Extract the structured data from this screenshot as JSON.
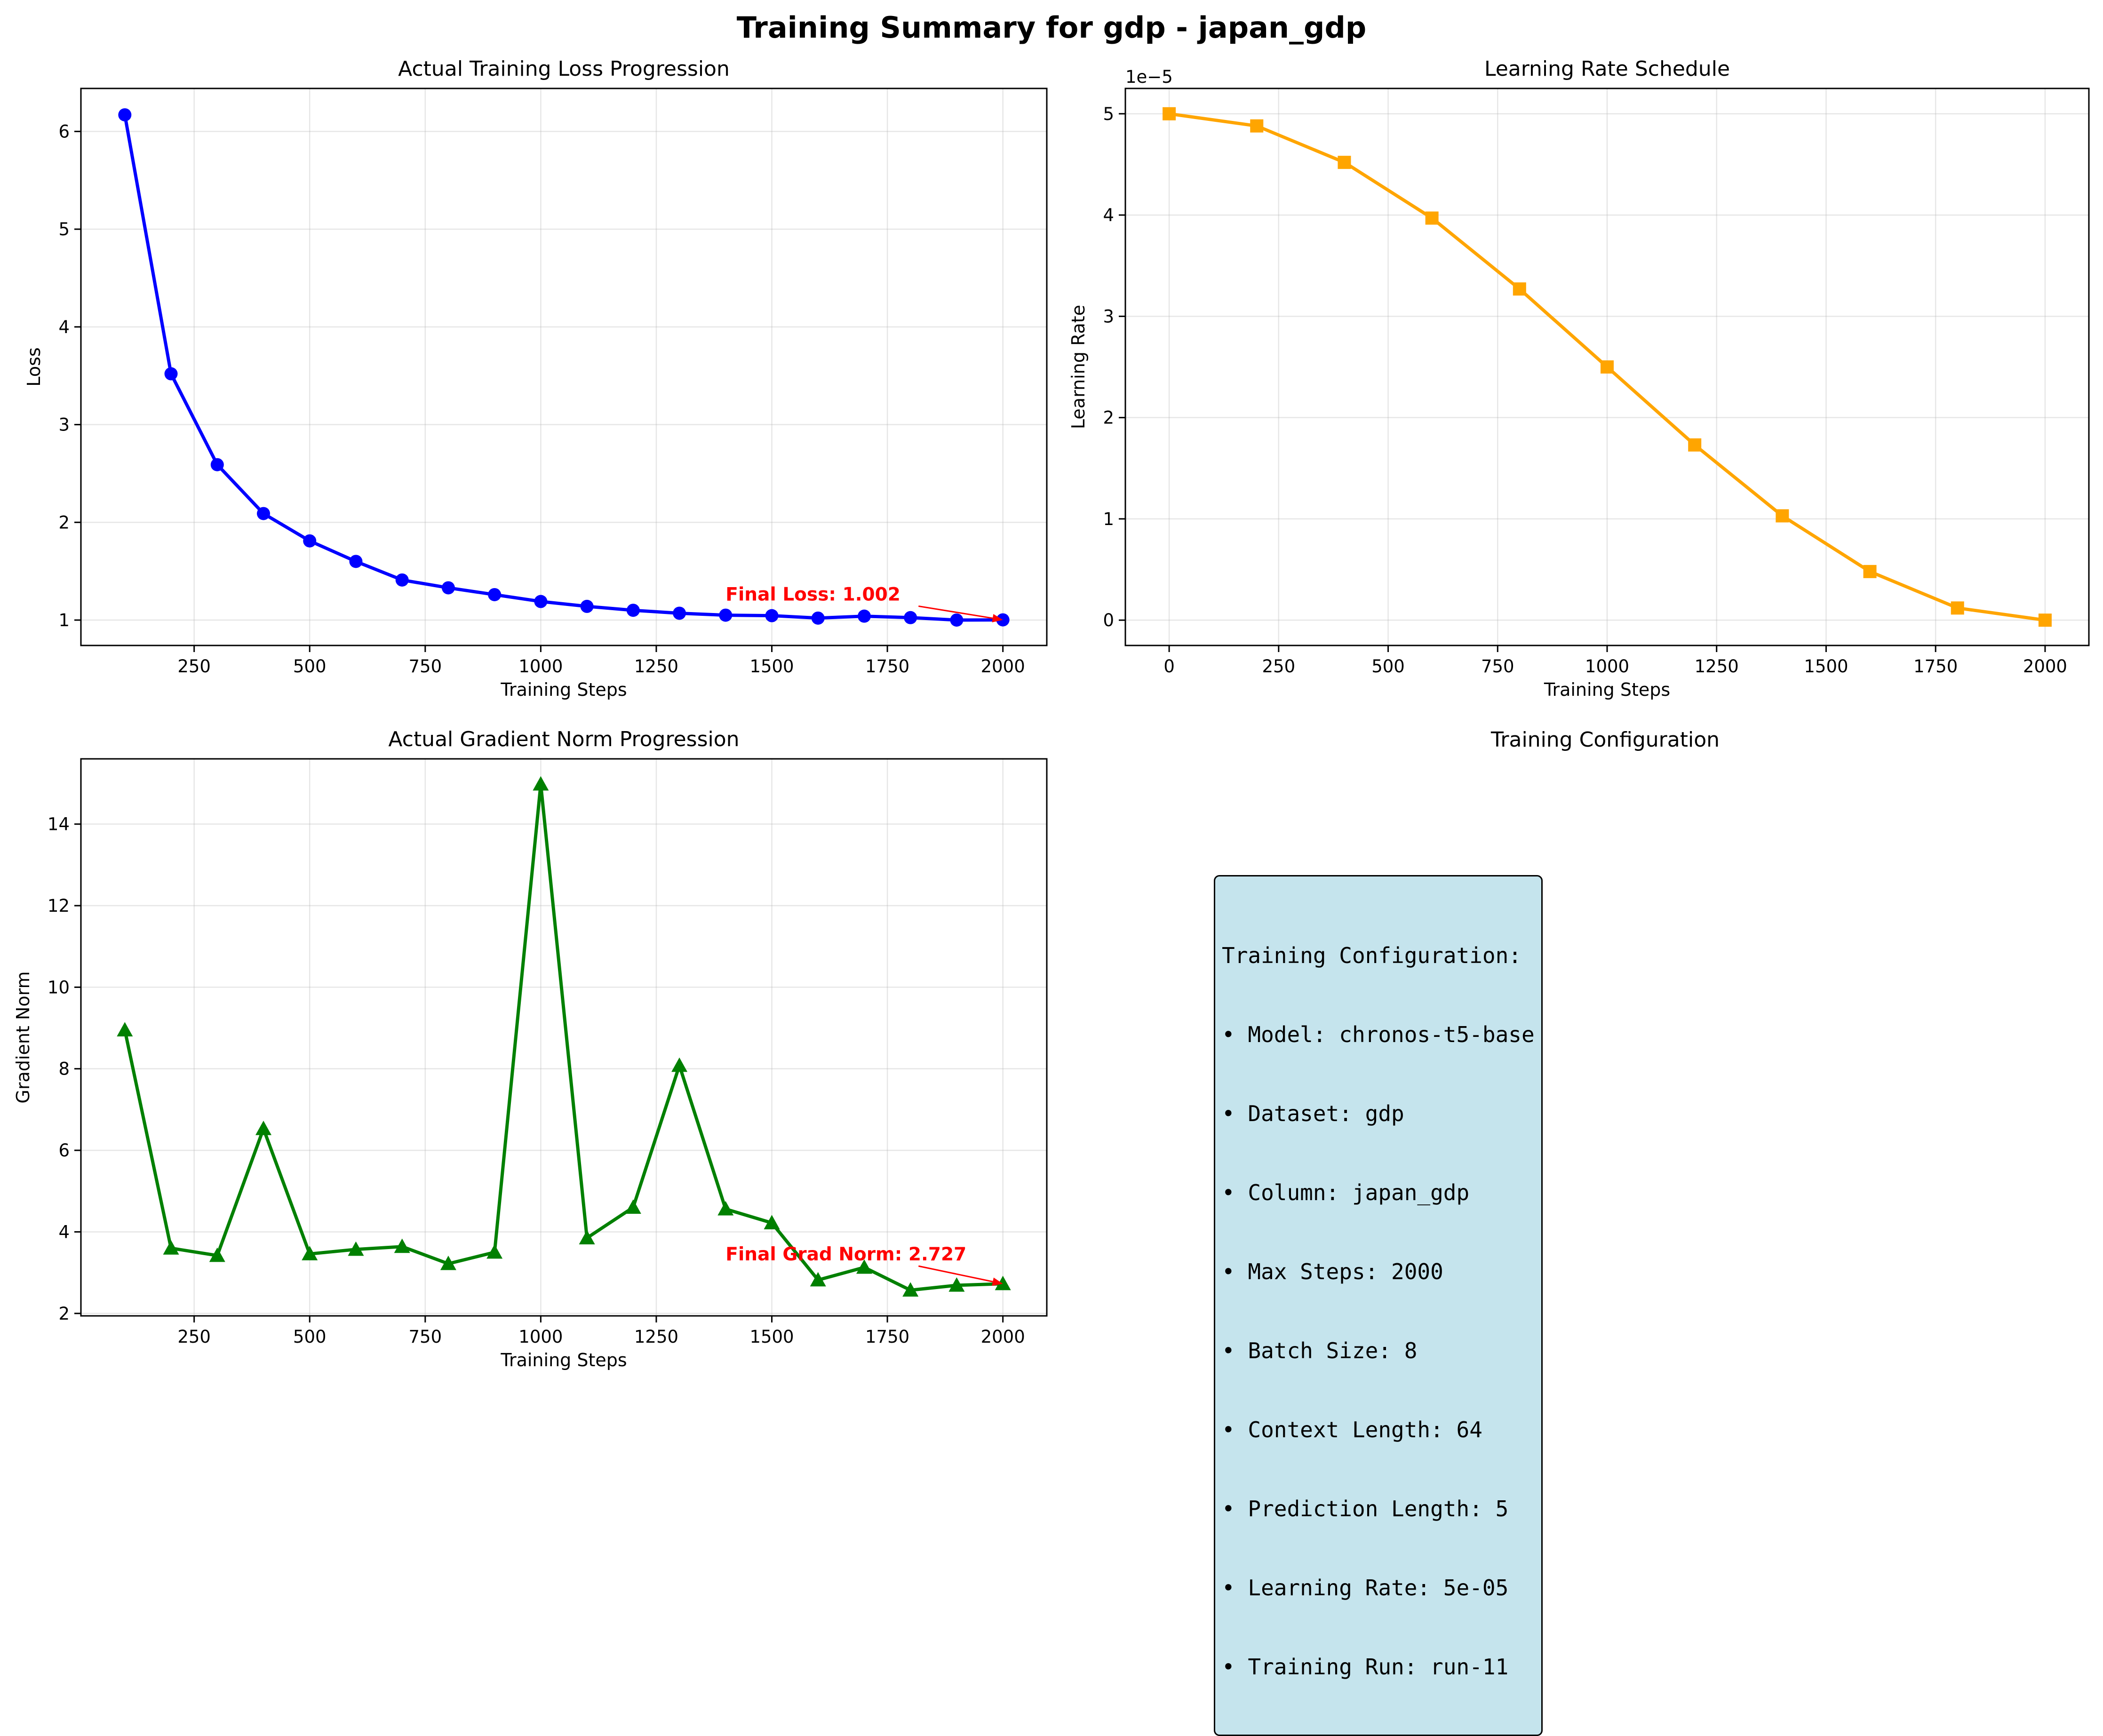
{
  "title": "Training Summary for gdp - japan_gdp",
  "chart_data": [
    {
      "type": "line",
      "title": "Actual Training Loss Progression",
      "xlabel": "Training Steps",
      "ylabel": "Loss",
      "xlim": [
        5,
        2095
      ],
      "ylim": [
        0.74,
        6.44
      ],
      "xticks": [
        250,
        500,
        750,
        1000,
        1250,
        1500,
        1750,
        2000
      ],
      "xtick_labels": [
        "250",
        "500",
        "750",
        "1000",
        "1250",
        "1500",
        "1750",
        "2000"
      ],
      "yticks": [
        1,
        2,
        3,
        4,
        5,
        6
      ],
      "ytick_labels": [
        "1",
        "2",
        "3",
        "4",
        "5",
        "6"
      ],
      "grid": true,
      "marker": "circle",
      "color": "#0000ff",
      "x": [
        100,
        200,
        300,
        400,
        500,
        600,
        700,
        800,
        900,
        1000,
        1100,
        1200,
        1300,
        1400,
        1500,
        1600,
        1700,
        1800,
        1900,
        2000
      ],
      "y": [
        6.17,
        3.52,
        2.59,
        2.09,
        1.81,
        1.6,
        1.41,
        1.33,
        1.26,
        1.19,
        1.14,
        1.1,
        1.07,
        1.05,
        1.045,
        1.02,
        1.04,
        1.025,
        1.0,
        1.002
      ],
      "annotation": {
        "text": "Final Loss: 1.002",
        "text_at": [
          1400,
          1.2
        ],
        "point": [
          2000,
          1.002
        ]
      }
    },
    {
      "type": "line",
      "title": "Learning Rate Schedule",
      "xlabel": "Training Steps",
      "ylabel": "Learning Rate",
      "scale_label": "1e−5",
      "xlim": [
        -100,
        2100
      ],
      "ylim": [
        -2.5e-06,
        5.25e-05
      ],
      "xticks": [
        0,
        250,
        500,
        750,
        1000,
        1250,
        1500,
        1750,
        2000
      ],
      "xtick_labels": [
        "0",
        "250",
        "500",
        "750",
        "1000",
        "1250",
        "1500",
        "1750",
        "2000"
      ],
      "yticks": [
        0,
        1e-05,
        2e-05,
        3e-05,
        4e-05,
        5e-05
      ],
      "ytick_labels": [
        "0",
        "1",
        "2",
        "3",
        "4",
        "5"
      ],
      "grid": true,
      "marker": "square",
      "color": "#ffa500",
      "x": [
        0,
        200,
        400,
        600,
        800,
        1000,
        1200,
        1400,
        1600,
        1800,
        2000
      ],
      "y": [
        5e-05,
        4.88e-05,
        4.52e-05,
        3.97e-05,
        3.27e-05,
        2.5e-05,
        1.73e-05,
        1.03e-05,
        4.8e-06,
        1.2e-06,
        0.0
      ]
    },
    {
      "type": "line",
      "title": "Actual Gradient Norm Progression",
      "xlabel": "Training Steps",
      "ylabel": "Gradient Norm",
      "xlim": [
        5,
        2095
      ],
      "ylim": [
        1.94,
        15.6
      ],
      "xticks": [
        250,
        500,
        750,
        1000,
        1250,
        1500,
        1750,
        2000
      ],
      "xtick_labels": [
        "250",
        "500",
        "750",
        "1000",
        "1250",
        "1500",
        "1750",
        "2000"
      ],
      "yticks": [
        2,
        4,
        6,
        8,
        10,
        12,
        14
      ],
      "ytick_labels": [
        "2",
        "4",
        "6",
        "8",
        "10",
        "12",
        "14"
      ],
      "grid": true,
      "marker": "triangle",
      "color": "#008000",
      "x": [
        100,
        200,
        300,
        400,
        500,
        600,
        700,
        800,
        900,
        1000,
        1100,
        1200,
        1300,
        1400,
        1500,
        1600,
        1700,
        1800,
        1900,
        2000
      ],
      "y": [
        8.95,
        3.6,
        3.42,
        6.53,
        3.46,
        3.57,
        3.64,
        3.22,
        3.5,
        14.98,
        3.85,
        4.6,
        8.08,
        4.56,
        4.22,
        2.82,
        3.13,
        2.57,
        2.69,
        2.727
      ],
      "annotation": {
        "text": "Final Grad Norm: 2.727",
        "text_at": [
          1400,
          3.3
        ],
        "point": [
          2000,
          2.727
        ]
      }
    }
  ],
  "config_panel": {
    "title": "Training Configuration",
    "lines": [
      "Training Configuration:",
      "• Model: chronos-t5-base",
      "• Dataset: gdp",
      "• Column: japan_gdp",
      "• Max Steps: 2000",
      "• Batch Size: 8",
      "• Context Length: 64",
      "• Prediction Length: 5",
      "• Learning Rate: 5e-05",
      "• Training Run: run-11"
    ]
  }
}
